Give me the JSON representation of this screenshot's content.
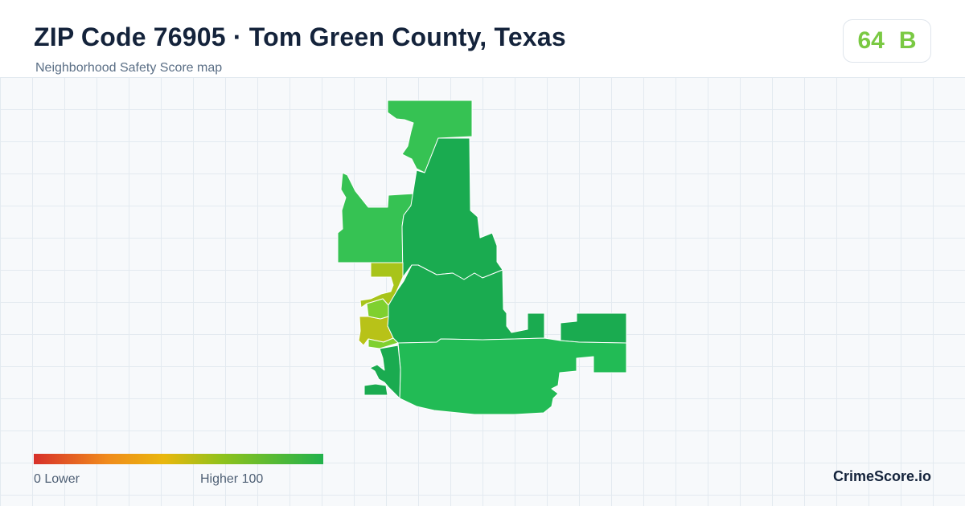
{
  "header": {
    "title": "ZIP Code 76905 · Tom Green County, Texas",
    "subtitle": "Neighborhood Safety Score map"
  },
  "score": {
    "value": "64",
    "grade": "B",
    "color": "#7ac943"
  },
  "legend": {
    "min_label": "0  Lower",
    "max_label": "Higher  100",
    "colors": [
      "#d7302a",
      "#f08a1c",
      "#e9b70d",
      "#8fc21c",
      "#22b24c"
    ]
  },
  "map": {
    "regions": [
      {
        "name": "north-tip",
        "color": "#36c253"
      },
      {
        "name": "northwest-block",
        "color": "#36c253"
      },
      {
        "name": "north-central",
        "color": "#1aab50"
      },
      {
        "name": "central",
        "color": "#1aab50"
      },
      {
        "name": "east-block",
        "color": "#1aab50"
      },
      {
        "name": "south",
        "color": "#22bb55"
      },
      {
        "name": "southwest-strip",
        "color": "#1aab50"
      },
      {
        "name": "west-yellow-upper",
        "color": "#a8c41a"
      },
      {
        "name": "west-yellow-lower",
        "color": "#b8c218"
      },
      {
        "name": "west-light-1",
        "color": "#7fd02f"
      },
      {
        "name": "west-light-2",
        "color": "#7fd02f"
      }
    ]
  },
  "brand": "CrimeScore.io"
}
